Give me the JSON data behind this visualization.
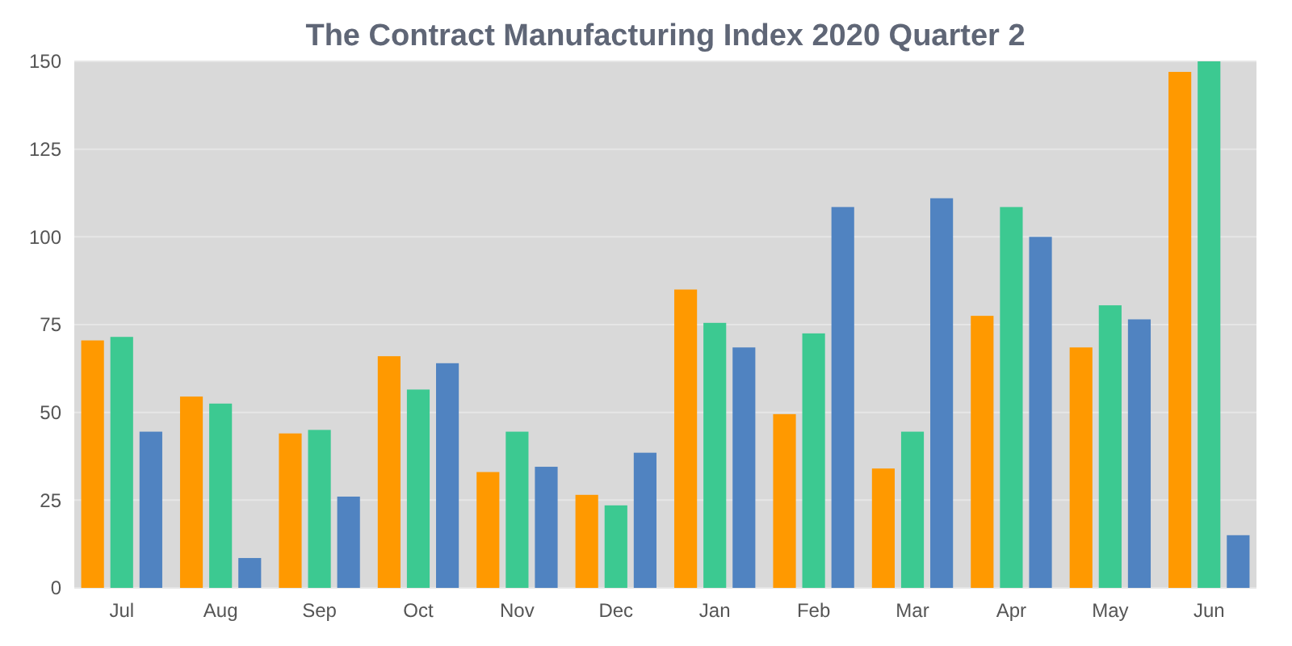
{
  "chart_data": {
    "type": "bar",
    "title": "The Contract Manufacturing Index 2020 Quarter 2",
    "categories": [
      "Jul",
      "Aug",
      "Sep",
      "Oct",
      "Nov",
      "Dec",
      "Jan",
      "Feb",
      "Mar",
      "Apr",
      "May",
      "Jun"
    ],
    "series": [
      {
        "color": "#ff9900",
        "values": [
          70.5,
          54.5,
          44,
          66,
          33,
          26.5,
          85,
          49.5,
          34,
          77.5,
          68.5,
          147
        ]
      },
      {
        "color": "#3cc991",
        "values": [
          71.5,
          52.5,
          45,
          56.5,
          44.5,
          23.5,
          75.5,
          72.5,
          44.5,
          108.5,
          80.5,
          150
        ]
      },
      {
        "color": "#5083c1",
        "values": [
          44.5,
          8.5,
          26,
          64,
          34.5,
          38.5,
          68.5,
          108.5,
          111,
          100,
          76.5,
          15
        ]
      }
    ],
    "ylim": [
      0,
      150
    ],
    "yticks": [
      0,
      25,
      50,
      75,
      100,
      125,
      150
    ],
    "grid": "y"
  }
}
